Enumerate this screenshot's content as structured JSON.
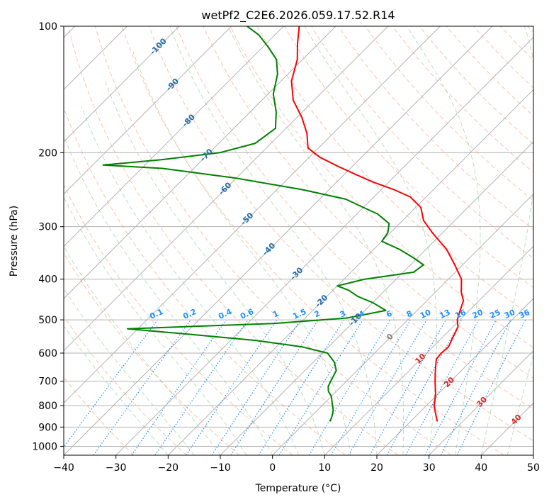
{
  "chart_data": {
    "type": "line",
    "title": "wetPf2_C2E6.2026.059.17.52.R14",
    "xlabel": "Temperature (°C)",
    "ylabel": "Pressure (hPa)",
    "xlim": [
      -40,
      50
    ],
    "ylim": [
      1050,
      100
    ],
    "x_ticks": [
      -40,
      -30,
      -20,
      -10,
      0,
      10,
      20,
      30,
      40,
      50
    ],
    "y_ticks": [
      1000,
      900,
      800,
      700,
      600,
      500,
      400,
      300,
      200,
      100
    ],
    "x_tick_labels": [
      "−40",
      "−30",
      "−20",
      "−10",
      "0",
      "10",
      "20",
      "30",
      "40",
      "50"
    ],
    "y_tick_labels": [
      "1000",
      "900",
      "800",
      "700",
      "600",
      "500",
      "400",
      "300",
      "200",
      "100"
    ],
    "grid": true,
    "skew": 45,
    "series": [
      {
        "name": "temperature",
        "color": "#ff0000",
        "points": [
          [
            25.0,
            870
          ],
          [
            24.0,
            850
          ],
          [
            22.5,
            820
          ],
          [
            21.5,
            800
          ],
          [
            19.5,
            750
          ],
          [
            17.0,
            700
          ],
          [
            15.5,
            670
          ],
          [
            14.0,
            640
          ],
          [
            13.0,
            620
          ],
          [
            12.8,
            600
          ],
          [
            13.0,
            580
          ],
          [
            12.0,
            550
          ],
          [
            11.0,
            520
          ],
          [
            9.5,
            500
          ],
          [
            8.0,
            470
          ],
          [
            7.0,
            450
          ],
          [
            5.0,
            430
          ],
          [
            2.5,
            400
          ],
          [
            -1.5,
            370
          ],
          [
            -6.0,
            340
          ],
          [
            -12.0,
            310
          ],
          [
            -16.0,
            290
          ],
          [
            -19.0,
            270
          ],
          [
            -23.0,
            255
          ],
          [
            -27.5,
            245
          ],
          [
            -33.0,
            235
          ],
          [
            -38.0,
            225
          ],
          [
            -43.0,
            215
          ],
          [
            -48.0,
            205
          ],
          [
            -52.0,
            195
          ],
          [
            -55.0,
            180
          ],
          [
            -59.0,
            165
          ],
          [
            -64.0,
            150
          ],
          [
            -68.0,
            135
          ],
          [
            -71.0,
            120
          ],
          [
            -74.0,
            110
          ],
          [
            -77.0,
            100
          ]
        ]
      },
      {
        "name": "dewpoint",
        "color": "#008000",
        "points": [
          [
            4.5,
            870
          ],
          [
            4.0,
            850
          ],
          [
            3.0,
            820
          ],
          [
            1.5,
            790
          ],
          [
            0.0,
            760
          ],
          [
            -1.5,
            740
          ],
          [
            -2.5,
            720
          ],
          [
            -3.0,
            700
          ],
          [
            -3.5,
            680
          ],
          [
            -4.0,
            660
          ],
          [
            -6.0,
            630
          ],
          [
            -9.0,
            600
          ],
          [
            -15.0,
            580
          ],
          [
            -25.0,
            560
          ],
          [
            -40.0,
            540
          ],
          [
            -52.0,
            525
          ],
          [
            -25.0,
            510
          ],
          [
            -12.0,
            495
          ],
          [
            -6.0,
            475
          ],
          [
            -10.0,
            455
          ],
          [
            -14.0,
            440
          ],
          [
            -17.0,
            425
          ],
          [
            -20.0,
            415
          ],
          [
            -16.0,
            400
          ],
          [
            -8.0,
            385
          ],
          [
            -7.5,
            370
          ],
          [
            -11.0,
            355
          ],
          [
            -15.0,
            340
          ],
          [
            -20.0,
            325
          ],
          [
            -20.5,
            310
          ],
          [
            -22.0,
            295
          ],
          [
            -26.0,
            280
          ],
          [
            -30.0,
            270
          ],
          [
            -35.0,
            258
          ],
          [
            -45.0,
            245
          ],
          [
            -60.0,
            230
          ],
          [
            -76.0,
            218
          ],
          [
            -88.0,
            214
          ],
          [
            -78.0,
            208
          ],
          [
            -68.0,
            200
          ],
          [
            -63.0,
            190
          ],
          [
            -62.0,
            175
          ],
          [
            -65.0,
            160
          ],
          [
            -69.0,
            145
          ],
          [
            -72.0,
            130
          ],
          [
            -75.0,
            120
          ],
          [
            -79.0,
            112
          ],
          [
            -83.0,
            105
          ],
          [
            -87.0,
            100
          ]
        ]
      }
    ],
    "isotherm_labels": [
      "-100",
      "-90",
      "-80",
      "-70",
      "-60",
      "-50",
      "-40",
      "-30",
      "-20",
      "-10"
    ],
    "mixing_ratio_labels": [
      "0.1",
      "0.2",
      "0.4",
      "0.6",
      "1",
      "1.5",
      "2",
      "3",
      "4",
      "6",
      "8",
      "10",
      "13",
      "16",
      "20",
      "25",
      "30",
      "36"
    ],
    "isotherm_label_0": "0",
    "isotherm_labels_warm": [
      "10",
      "20",
      "30",
      "40"
    ],
    "colors": {
      "isotherm": "#b3b3b3",
      "dry_adiabat": "#ff8c69",
      "moist_adiabat": "#8fc98f",
      "mixing_ratio": "#1e90ff",
      "isotherm_label": "#1f6aa5",
      "warm_label": "#d62728",
      "zero_label": "#808080"
    }
  }
}
